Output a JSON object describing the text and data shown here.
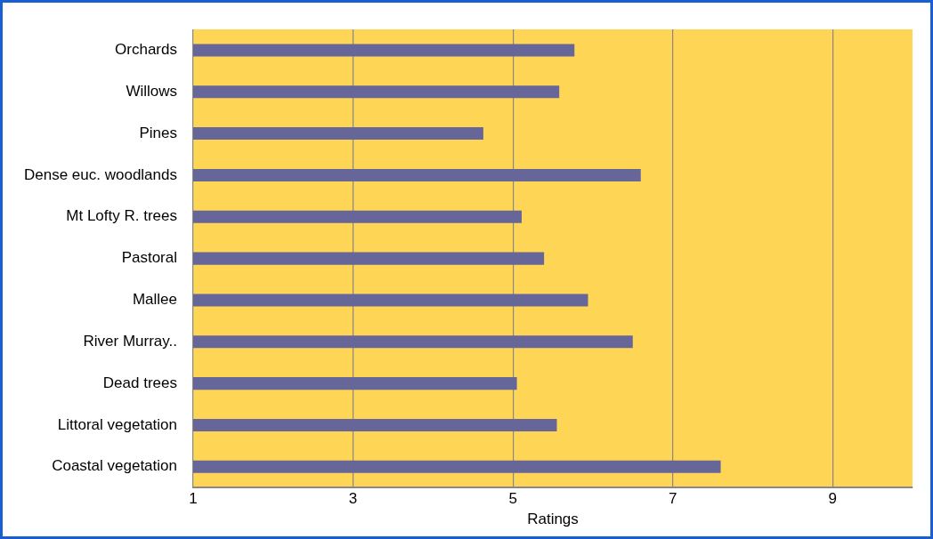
{
  "chart_data": {
    "type": "bar",
    "orientation": "horizontal",
    "xlabel": "Ratings",
    "categories": [
      "Orchards",
      "Willows",
      "Pines",
      "Dense euc. woodlands",
      "Mt Lofty R. trees",
      "Pastoral",
      "Mallee",
      "River Murray..",
      "Dead trees",
      "Littoral vegetation",
      "Coastal vegetation"
    ],
    "values": [
      5.77,
      5.58,
      4.63,
      6.6,
      5.11,
      5.39,
      5.94,
      6.5,
      5.05,
      5.55,
      7.6
    ],
    "color": "#666699",
    "xlim": [
      1,
      10
    ],
    "xticks": [
      1,
      3,
      5,
      7,
      9
    ],
    "grid": "x",
    "legend": false
  }
}
